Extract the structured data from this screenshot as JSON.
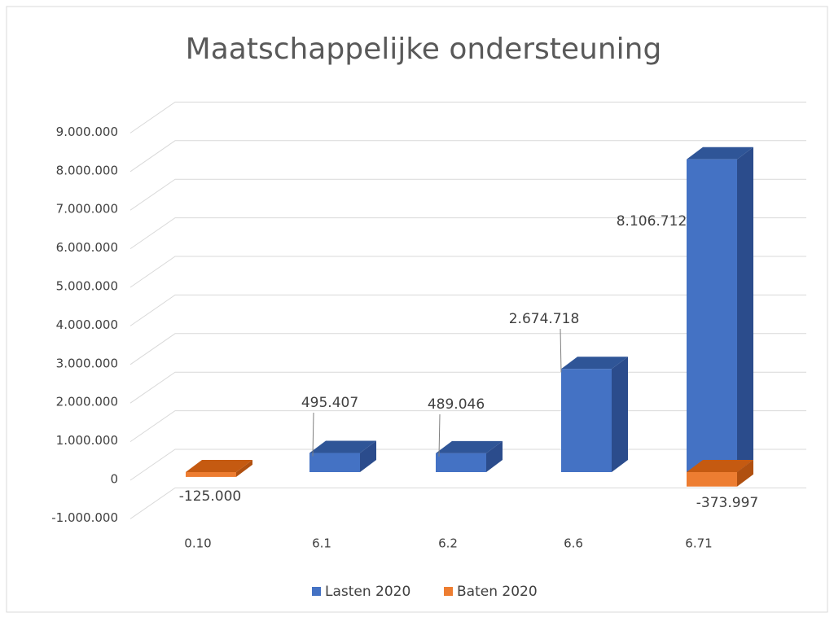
{
  "chart_data": {
    "type": "bar3d",
    "title": "Maatschappelijke ondersteuning",
    "categories": [
      "0.10",
      "6.1",
      "6.2",
      "6.6",
      "6.71"
    ],
    "series": [
      {
        "name": "Lasten 2020",
        "color": "#4472c4",
        "values": [
          null,
          495407,
          489046,
          2674718,
          8106712
        ],
        "value_labels": [
          null,
          "495.407",
          "489.046",
          "2.674.718",
          "8.106.712"
        ]
      },
      {
        "name": "Baten 2020",
        "color": "#ed7d31",
        "values": [
          -125000,
          null,
          null,
          null,
          -373997
        ],
        "value_labels": [
          "-125.000",
          null,
          null,
          null,
          "-373.997"
        ]
      }
    ],
    "ylim": [
      -1000000,
      9000000
    ],
    "yticks": [
      {
        "value": -1000000,
        "label": "-1.000.000"
      },
      0,
      {
        "value": 1000000,
        "label": "1.000.000"
      },
      {
        "value": 2000000,
        "label": "2.000.000"
      },
      {
        "value": 3000000,
        "label": "3.000.000"
      },
      {
        "value": 4000000,
        "label": "4.000.000"
      },
      {
        "value": 5000000,
        "label": "5.000.000"
      },
      {
        "value": 6000000,
        "label": "6.000.000"
      },
      {
        "value": 7000000,
        "label": "7.000.000"
      },
      {
        "value": 8000000,
        "label": "8.000.000"
      },
      {
        "value": 9000000,
        "label": "9.000.000"
      }
    ],
    "grid": true,
    "legend": "bottom"
  }
}
